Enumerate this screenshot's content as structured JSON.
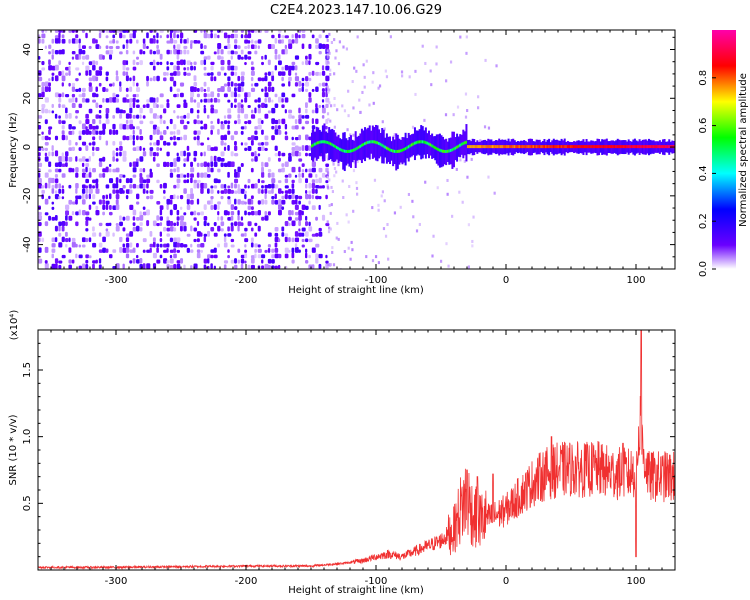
{
  "chart_data": [
    {
      "type": "heatmap",
      "title": "C2E4.2023.147.10.06.G29",
      "xlabel": "Height of straight line (km)",
      "ylabel": "Frequency (Hz)",
      "xlim": [
        -360,
        130
      ],
      "ylim": [
        -50,
        48
      ],
      "x_ticks": [
        -300,
        -200,
        -100,
        0,
        100
      ],
      "y_ticks": [
        -40,
        -20,
        0,
        20,
        40
      ],
      "grid": false,
      "colorbar": {
        "label": "Normalized spectral amplitude",
        "range": [
          0,
          1
        ],
        "ticks": [
          "0.0",
          "0.2",
          "0.4",
          "0.6",
          "0.8"
        ],
        "colormap": [
          "#ffffff",
          "#6a00ff",
          "#0000ff",
          "#00ffff",
          "#00ff00",
          "#ffff00",
          "#ff0000",
          "#ff00aa"
        ]
      },
      "features": {
        "noise_region_x": [
          -360,
          -138
        ],
        "noise_amplitude": 0.2,
        "signal_line_y": 0,
        "signal_start_x": -150,
        "signal_color_late": "#ff0000",
        "signal_color_early": "#00ff66"
      }
    },
    {
      "type": "line",
      "xlabel": "Height of straight line (km)",
      "ylabel": "SNR (10 * v/v)",
      "y_scale_label": "(x10⁴)",
      "xlim": [
        -360,
        130
      ],
      "ylim": [
        0,
        1.8
      ],
      "x_ticks": [
        -300,
        -200,
        -100,
        0,
        100
      ],
      "y_ticks": [
        "0.5",
        "1.0",
        "1.5"
      ],
      "y_tick_values": [
        0.5,
        1.0,
        1.5
      ],
      "color": "#f03030",
      "grid": false,
      "series": [
        {
          "x": [
            -360,
            -300,
            -200,
            -150,
            -125,
            -110,
            -100,
            -90,
            -80,
            -70,
            -60,
            -50,
            -40,
            -35,
            -30,
            -25,
            -20,
            -10,
            0,
            10,
            20,
            30,
            40,
            50,
            60,
            70,
            80,
            90,
            95,
            100,
            103,
            105,
            110,
            120,
            130
          ],
          "values": [
            0.02,
            0.02,
            0.03,
            0.03,
            0.05,
            0.07,
            0.1,
            0.12,
            0.1,
            0.14,
            0.18,
            0.22,
            0.3,
            0.45,
            0.55,
            0.4,
            0.38,
            0.4,
            0.45,
            0.55,
            0.65,
            0.72,
            0.75,
            0.76,
            0.75,
            0.76,
            0.73,
            0.72,
            0.72,
            0.75,
            1.1,
            0.9,
            0.7,
            0.7,
            0.7
          ],
          "spikes": [
            [
              -30,
              0.75
            ],
            [
              -22,
              0.7
            ],
            [
              -10,
              0.72
            ],
            [
              35,
              1.0
            ],
            [
              90,
              0.95
            ],
            [
              104,
              1.8
            ],
            [
              100,
              0.1
            ]
          ]
        }
      ]
    }
  ]
}
